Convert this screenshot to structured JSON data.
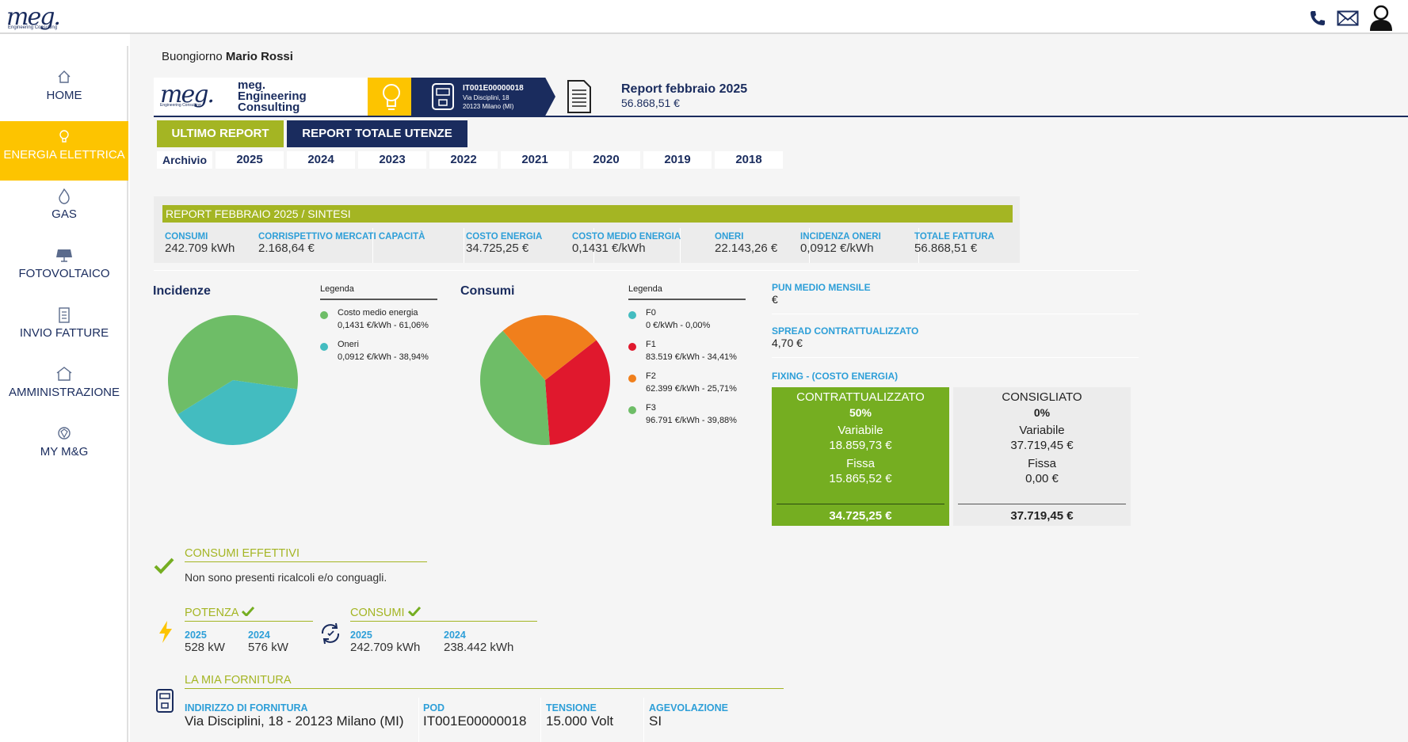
{
  "header": {
    "logo_word": "meg.",
    "logo_sub": "Engineering Consulting",
    "icons": [
      "phone-icon",
      "mail-icon",
      "user-icon"
    ]
  },
  "sidebar": {
    "items": [
      {
        "label": "HOME",
        "icon": "home-icon"
      },
      {
        "label": "ENERGIA ELETTRICA",
        "icon": "bulb-icon",
        "active": true
      },
      {
        "label": "GAS",
        "icon": "flame-icon"
      },
      {
        "label": "FOTOVOLTAICO",
        "icon": "solar-panel-icon"
      },
      {
        "label": "INVIO FATTURE",
        "icon": "invoice-icon"
      },
      {
        "label": "AMMINISTRAZIONE",
        "icon": "house-icon"
      },
      {
        "label": "MY M&G",
        "icon": "gem-icon"
      }
    ]
  },
  "greeting": {
    "prefix": "Buongiorno",
    "name": "Mario Rossi"
  },
  "banner": {
    "company_logo": "meg.",
    "company_logo_sub": "Engineering Consulting",
    "company_l1": "meg.",
    "company_l2": "Engineering",
    "company_l3": "Consulting",
    "pod_code": "IT001E00000018",
    "pod_addr1": "Via Disciplini, 18",
    "pod_addr2": "20123 Milano (MI)",
    "report_title": "Report febbraio 2025",
    "report_value": "56.868,51 €"
  },
  "buttons": {
    "last_report": "ULTIMO REPORT",
    "total_report": "REPORT TOTALE UTENZE"
  },
  "archive": {
    "label": "Archivio",
    "years": [
      "2025",
      "2024",
      "2023",
      "2022",
      "2021",
      "2020",
      "2019",
      "2018"
    ]
  },
  "synthesis": {
    "title": "REPORT FEBBRAIO 2025 / SINTESI",
    "kpis": [
      {
        "label": "CONSUMI",
        "value": "242.709 kWh"
      },
      {
        "label": "CORRISPETTIVO MERCATI CAPACITÀ",
        "value": "2.168,64 €"
      },
      {
        "label": "COSTO ENERGIA",
        "value": "34.725,25 €"
      },
      {
        "label": "COSTO MEDIO ENERGIA",
        "value": "0,1431 €/kWh"
      },
      {
        "label": "ONERI",
        "value": "22.143,26 €"
      },
      {
        "label": "INCIDENZA ONERI",
        "value": "0,0912 €/kWh"
      },
      {
        "label": "TOTALE FATTURA",
        "value": "56.868,51 €"
      }
    ]
  },
  "chart_data": [
    {
      "type": "pie",
      "title": "Incidenze",
      "legend_title": "Legenda",
      "slices": [
        {
          "name": "Costo medio energia",
          "detail": "0,1431 €/kWh - 61,06%",
          "value": 61.06,
          "color": "#6ebd67"
        },
        {
          "name": "Oneri",
          "detail": "0,0912 €/kWh - 38,94%",
          "value": 38.94,
          "color": "#43bcc0"
        }
      ]
    },
    {
      "type": "pie",
      "title": "Consumi",
      "legend_title": "Legenda",
      "slices": [
        {
          "name": "F0",
          "detail": "0 €/kWh - 0,00%",
          "value": 0.0,
          "color": "#43bcc0"
        },
        {
          "name": "F1",
          "detail": "83.519 €/kWh - 34,41%",
          "value": 34.41,
          "color": "#e0182d"
        },
        {
          "name": "F2",
          "detail": "62.399 €/kWh - 25,71%",
          "value": 25.71,
          "color": "#f07f1c"
        },
        {
          "name": "F3",
          "detail": "96.791 €/kWh - 39,88%",
          "value": 39.88,
          "color": "#6ebd67"
        }
      ]
    }
  ],
  "pun": {
    "label": "PUN MEDIO MENSILE",
    "value": "€"
  },
  "spread": {
    "label": "SPREAD CONTRATTUALIZZATO",
    "value": "4,70 €"
  },
  "fixing": {
    "label": "FIXING - (COSTO ENERGIA)",
    "contracted": {
      "title": "CONTRATTUALIZZATO",
      "percent": "50%",
      "var_label": "Variabile",
      "var_value": "18.859,73 €",
      "fix_label": "Fissa",
      "fix_value": "15.865,52 €",
      "total": "34.725,25 €"
    },
    "suggested": {
      "title": "CONSIGLIATO",
      "percent": "0%",
      "var_label": "Variabile",
      "var_value": "37.719,45 €",
      "fix_label": "Fissa",
      "fix_value": "0,00 €",
      "total": "37.719,45 €"
    }
  },
  "effective": {
    "title": "CONSUMI EFFETTIVI",
    "text": "Non sono presenti ricalcoli e/o conguagli."
  },
  "power": {
    "title": "POTENZA",
    "y1": "2025",
    "v1": "528 kW",
    "y2": "2024",
    "v2": "576 kW"
  },
  "consumption": {
    "title": "CONSUMI",
    "y1": "2025",
    "v1": "242.709 kWh",
    "y2": "2024",
    "v2": "238.442 kWh"
  },
  "supply": {
    "title": "LA MIA FORNITURA",
    "address_label": "INDIRIZZO DI FORNITURA",
    "address": "Via Disciplini, 18 - 20123 Milano (MI)",
    "pod_label": "POD",
    "pod": "IT001E00000018",
    "voltage_label": "TENSIONE",
    "voltage": "15.000 Volt",
    "relief_label": "AGEVOLAZIONE",
    "relief": "SI"
  },
  "colors": {
    "navy": "#1a2c5e",
    "yellow": "#fdc400",
    "olive": "#a4b523",
    "blue": "#2e9fd8",
    "green": "#75ae21"
  }
}
